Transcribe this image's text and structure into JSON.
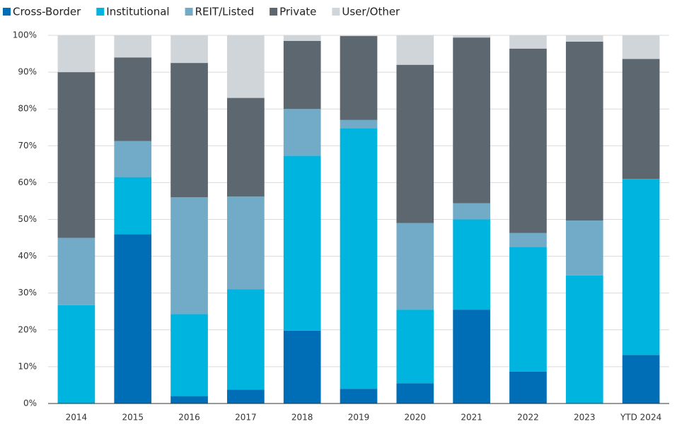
{
  "chart_data": {
    "type": "stacked_bar",
    "categories": [
      "2014",
      "2015",
      "2016",
      "2017",
      "2018",
      "2019",
      "2020",
      "2021",
      "2022",
      "2023",
      "YTD 2024"
    ],
    "series": [
      {
        "name": "Cross-Border",
        "color": "#006eb6",
        "values": [
          0,
          46,
          2,
          3.8,
          19.8,
          4,
          5.5,
          25.5,
          8.7,
          0,
          13.2
        ]
      },
      {
        "name": "Institutional",
        "color": "#00b4e0",
        "values": [
          26.7,
          15.5,
          22.3,
          27.2,
          47.5,
          70.8,
          20,
          24.5,
          33.8,
          34.8,
          47.8
        ]
      },
      {
        "name": "REIT/Listed",
        "color": "#72abc8",
        "values": [
          18.3,
          9.8,
          31.7,
          25.2,
          12.7,
          2.2,
          23.5,
          4.4,
          3.8,
          14.9,
          0
        ]
      },
      {
        "name": "Private",
        "color": "#5c6770",
        "values": [
          45,
          22.7,
          36.5,
          26.8,
          18.5,
          22.8,
          43,
          45,
          50.1,
          48.6,
          32.6
        ]
      },
      {
        "name": "User/Other",
        "color": "#d0d5da",
        "values": [
          10,
          6,
          7.5,
          17,
          1.5,
          0.2,
          8,
          0.6,
          3.6,
          1.7,
          6.4
        ]
      }
    ],
    "ylim": [
      0,
      100
    ],
    "yticks": [
      {
        "value": 0,
        "label": "0%"
      },
      {
        "value": 10,
        "label": "10%"
      },
      {
        "value": 20,
        "label": "20%"
      },
      {
        "value": 30,
        "label": "30%"
      },
      {
        "value": 40,
        "label": "40%"
      },
      {
        "value": 50,
        "label": "50%"
      },
      {
        "value": 60,
        "label": "60%"
      },
      {
        "value": 70,
        "label": "70%"
      },
      {
        "value": 80,
        "label": "80%"
      },
      {
        "value": 90,
        "label": "90%"
      },
      {
        "value": 100,
        "label": "100%"
      }
    ],
    "grid": true
  }
}
